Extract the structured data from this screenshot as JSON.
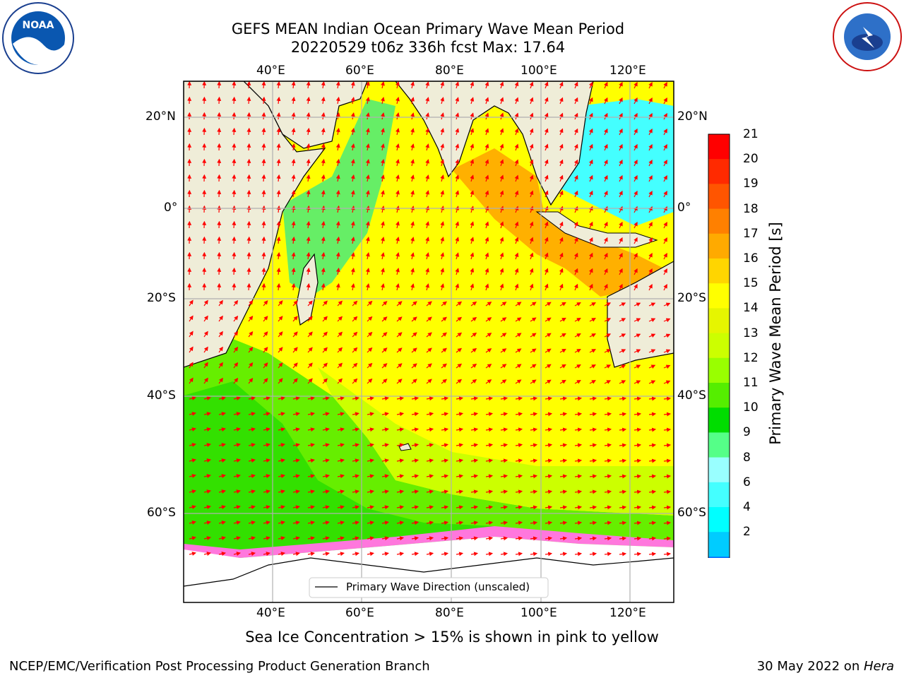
{
  "title_line1": "GEFS MEAN Indian Ocean Primary Wave Mean Period",
  "title_line2": "20220529 t06z 336h fcst   Max: 17.64",
  "logos": {
    "left": "NOAA",
    "right": "NATIONAL WEATHER SERVICE"
  },
  "axes": {
    "lon_ticks": [
      "40°E",
      "60°E",
      "80°E",
      "100°E",
      "120°E"
    ],
    "lat_ticks": [
      "20°N",
      "0°",
      "20°S",
      "40°S",
      "60°S"
    ]
  },
  "legend_label": "Primary Wave Direction (unscaled)",
  "colorbar": {
    "label": "Primary Wave Mean Period [s]",
    "ticks": [
      "21",
      "20",
      "19",
      "18",
      "17",
      "16",
      "15",
      "14",
      "13",
      "12",
      "11",
      "10",
      "9",
      "8",
      "6",
      "4",
      "2"
    ],
    "colors": [
      "#ff0000",
      "#ff2a00",
      "#ff5500",
      "#ff8000",
      "#ffaa00",
      "#ffd500",
      "#ffff00",
      "#e6f500",
      "#ccff00",
      "#99ff00",
      "#55ee00",
      "#00dd00",
      "#55ff88",
      "#99ffff",
      "#44ffff",
      "#00ffff",
      "#00ccff",
      "#0066ff",
      "#0000ff"
    ]
  },
  "caption": "Sea Ice Concentration > 15% is shown in pink to yellow",
  "footer_left": "NCEP/EMC/Verification Post Processing Product Generation Branch",
  "footer_right_prefix": "30 May 2022 on ",
  "footer_right_italic": "Hera"
}
